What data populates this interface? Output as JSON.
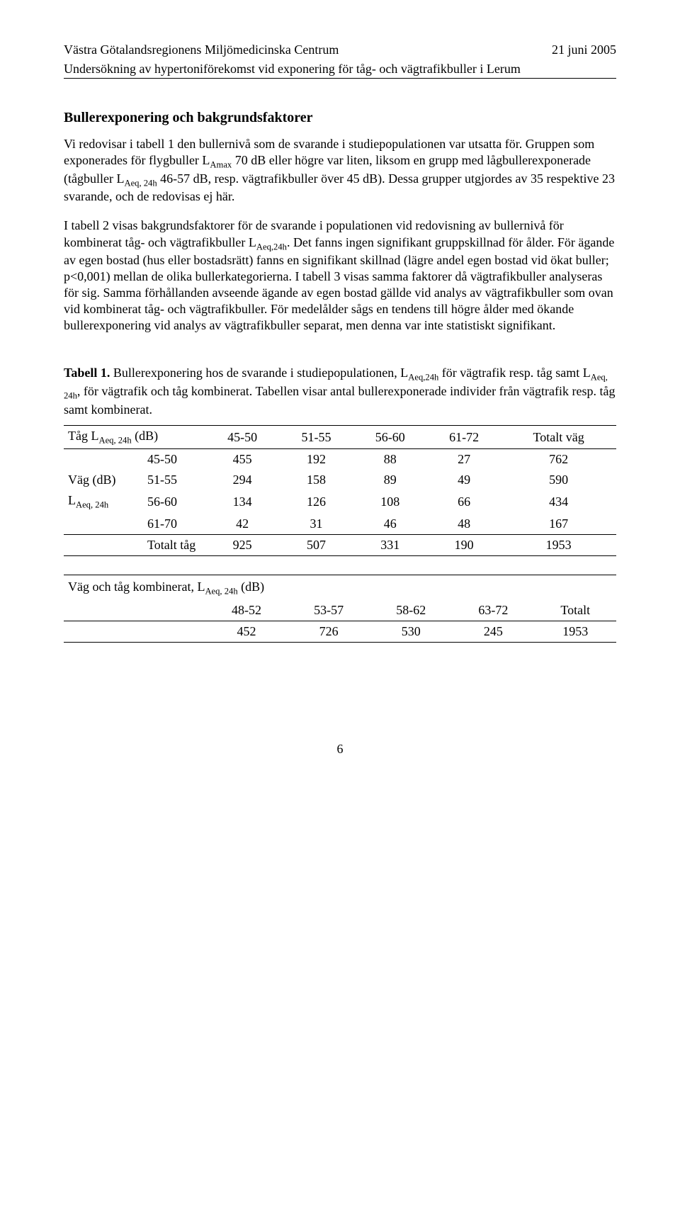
{
  "header": {
    "left": "Västra Götalandsregionens Miljömedicinska Centrum",
    "right": "21 juni 2005",
    "subtitle": "Undersökning av hypertoniförekomst vid exponering för tåg- och vägtrafikbuller i Lerum"
  },
  "section_title": "Bullerexponering och bakgrundsfaktorer",
  "para1_a": "Vi redovisar i tabell 1 den bullernivå som de svarande i studiepopulationen var utsatta för. Gruppen som exponerades för flygbuller L",
  "para1_b": " 70 dB eller högre var liten, liksom en grupp med lågbullerexponerade (tågbuller L",
  "para1_c": " 46-57 dB, resp. vägtrafikbuller över 45 dB). Dessa grupper utgjordes av 35 respektive 23 svarande, och de redovisas ej här.",
  "sub_amax": "Amax",
  "sub_aeq24h": "Aeq, 24h",
  "sub_aeq24h_nospace": "Aeq,24h",
  "para2_a": "I tabell 2 visas bakgrundsfaktorer för de svarande i populationen vid redovisning av bullernivå för kombinerat tåg- och vägtrafikbuller L",
  "para2_b": ". Det fanns ingen signifikant gruppskillnad för ålder. För ägande av egen bostad (hus eller bostadsrätt) fanns en signifikant skillnad (lägre andel egen bostad vid ökat buller; p<0,001) mellan de olika bullerkategorierna. I tabell 3 visas samma faktorer då vägtrafikbuller analyseras för sig. Samma förhållanden avseende ägande av egen bostad gällde vid analys av vägtrafikbuller som ovan vid kombinerat tåg- och vägtrafikbuller. För medelålder sågs en tendens till högre ålder med ökande bullerexponering vid analys av vägtrafikbuller separat, men denna var inte statistiskt signifikant.",
  "table1": {
    "caption_bold": "Tabell 1.",
    "caption_a": " Bullerexponering hos de svarande i studiepopulationen, L",
    "caption_b": " för vägtrafik resp. tåg samt L",
    "caption_c": ", för vägtrafik och tåg kombinerat. Tabellen visar antal bullerexponerade individer från vägtrafik resp. tåg samt kombinerat.",
    "head_left_a": "Tåg L",
    "head_left_b": " (dB)",
    "col_headers": [
      "45-50",
      "51-55",
      "56-60",
      "61-72",
      "Totalt väg"
    ],
    "stub_a": "Väg (dB)",
    "stub_b_pre": "L",
    "row_labels": [
      "45-50",
      "51-55",
      "56-60",
      "61-70",
      "Totalt tåg"
    ],
    "rows": [
      [
        "455",
        "192",
        "88",
        "27",
        "762"
      ],
      [
        "294",
        "158",
        "89",
        "49",
        "590"
      ],
      [
        "134",
        "126",
        "108",
        "66",
        "434"
      ],
      [
        "42",
        "31",
        "46",
        "48",
        "167"
      ],
      [
        "925",
        "507",
        "331",
        "190",
        "1953"
      ]
    ]
  },
  "table2": {
    "head1_a": "Väg och tåg kombinerat, L",
    "head1_b": " (dB)",
    "col_headers": [
      "48-52",
      "53-57",
      "58-62",
      "63-72",
      "Totalt"
    ],
    "row": [
      "452",
      "726",
      "530",
      "245",
      "1953"
    ]
  },
  "page_number": "6"
}
